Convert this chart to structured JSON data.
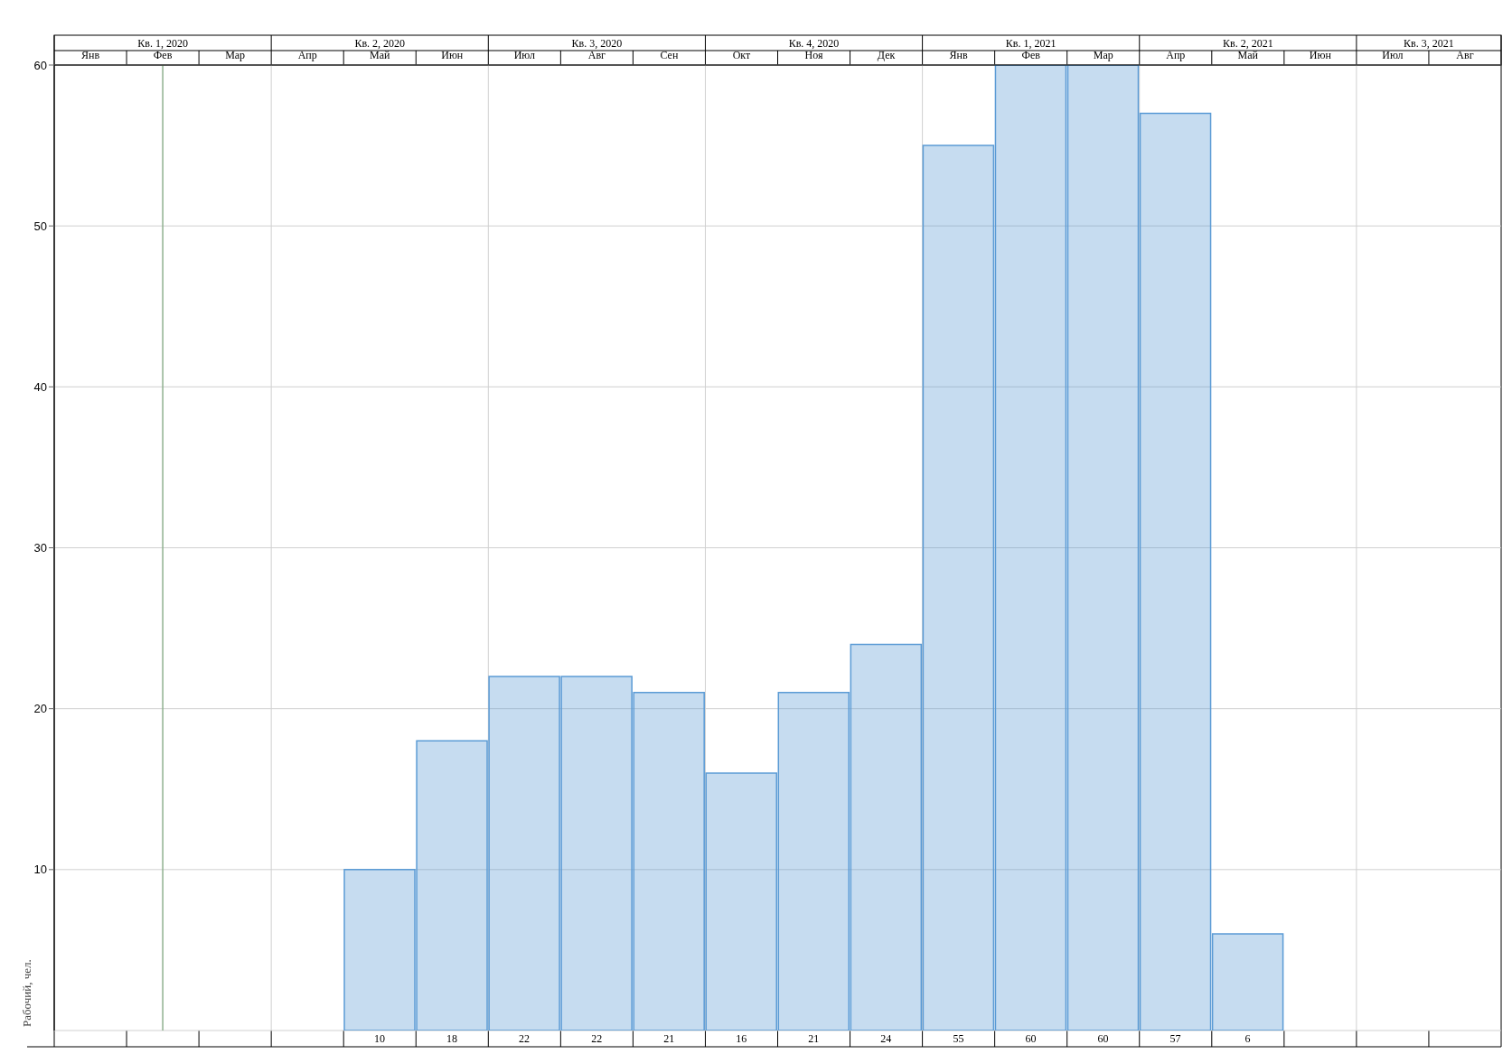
{
  "chart_data": {
    "type": "bar",
    "ylabel": "Рабочий, чел.",
    "annotations": [
      "Кв. 1, 2020",
      "Кв. 2, 2020",
      "Кв. 3, 2020",
      "Кв. 4, 2020",
      "Кв. 1, 2021",
      "Кв. 2, 2021",
      "Кв. 3, 2021"
    ],
    "categories": [
      "Янв",
      "Фев",
      "Мар",
      "Апр",
      "Май",
      "Июн",
      "Июл",
      "Авг",
      "Сен",
      "Окт",
      "Ноя",
      "Дек",
      "Янв",
      "Фев",
      "Мар",
      "Апр",
      "Май",
      "Июн",
      "Июл",
      "Авг"
    ],
    "values": [
      null,
      null,
      null,
      null,
      10,
      18,
      22,
      22,
      21,
      16,
      21,
      24,
      55,
      60,
      60,
      57,
      6,
      null,
      null,
      null
    ],
    "color": "#5b9bd5",
    "ylim": [
      0,
      60
    ],
    "yticks": [
      10,
      20,
      30,
      40,
      50,
      60
    ],
    "grid": true,
    "data_labels": true,
    "ref_lines": [
      {
        "axis": "x",
        "value": "Фев",
        "color": "#8fb08f"
      }
    ]
  }
}
